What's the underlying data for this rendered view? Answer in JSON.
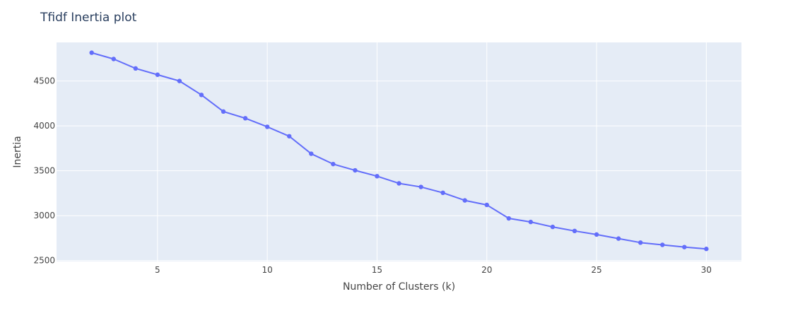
{
  "chart_data": {
    "type": "line",
    "title": "Tfidf Inertia plot",
    "xlabel": "Number of Clusters (k)",
    "ylabel": "Inertia",
    "xlim": [
      0.4,
      31.6
    ],
    "ylim": [
      2490,
      4930
    ],
    "x_ticks": [
      5,
      10,
      15,
      20,
      25,
      30
    ],
    "y_ticks": [
      2500,
      3000,
      3500,
      4000,
      4500
    ],
    "grid": true,
    "legend": "none",
    "colors": {
      "line": "#636efa",
      "plot_bg": "#e5ecf6",
      "grid": "#ffffff",
      "text": "#2a3f5f"
    },
    "series": [
      {
        "x": [
          2,
          3,
          4,
          5,
          6,
          7,
          8,
          9,
          10,
          11,
          12,
          13,
          14,
          15,
          16,
          17,
          18,
          19,
          20,
          21,
          22,
          23,
          24,
          25,
          26,
          27,
          28,
          29,
          30
        ],
        "y": [
          4815,
          4745,
          4640,
          4570,
          4500,
          4345,
          4160,
          4085,
          3990,
          3885,
          3690,
          3575,
          3505,
          3440,
          3360,
          3320,
          3255,
          3170,
          3120,
          2970,
          2930,
          2875,
          2830,
          2790,
          2745,
          2700,
          2675,
          2650,
          2630
        ]
      }
    ]
  }
}
